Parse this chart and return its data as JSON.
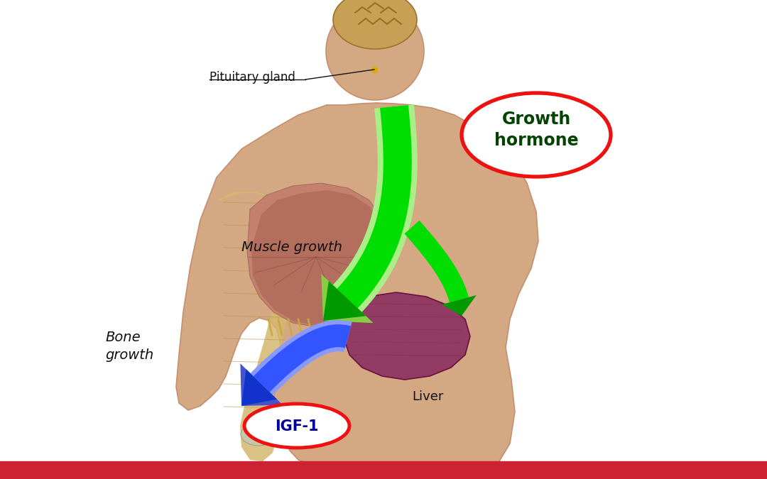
{
  "bg_color": "#ffffff",
  "body_skin_color": "#d4a882",
  "body_outline_color": "#c49070",
  "pituitary_label": "Pituitary gland",
  "muscle_label": "Muscle growth",
  "bone_label": "Bone\ngrowth",
  "liver_label": "Liver",
  "gh_label": "Growth\nhormone",
  "igf_label": "IGF-1",
  "arrow_green_bright": "#00dd00",
  "arrow_green_dark": "#009900",
  "arrow_green_pale": "#aaee88",
  "arrow_blue_bright": "#3355ff",
  "arrow_blue_dark": "#1133cc",
  "ellipse_red": "#ee1111",
  "gh_text_color": "#004400",
  "igf_text_color": "#000099",
  "label_color": "#111111",
  "red_bar_color": "#cc2233",
  "brain_color": "#c8a055",
  "brain_fold_color": "#9a7020",
  "muscle_color1": "#c87a6a",
  "muscle_color2": "#b06050",
  "arm_color": "#d4b870",
  "liver_color": "#8B3060",
  "liver_outline": "#6B1040"
}
